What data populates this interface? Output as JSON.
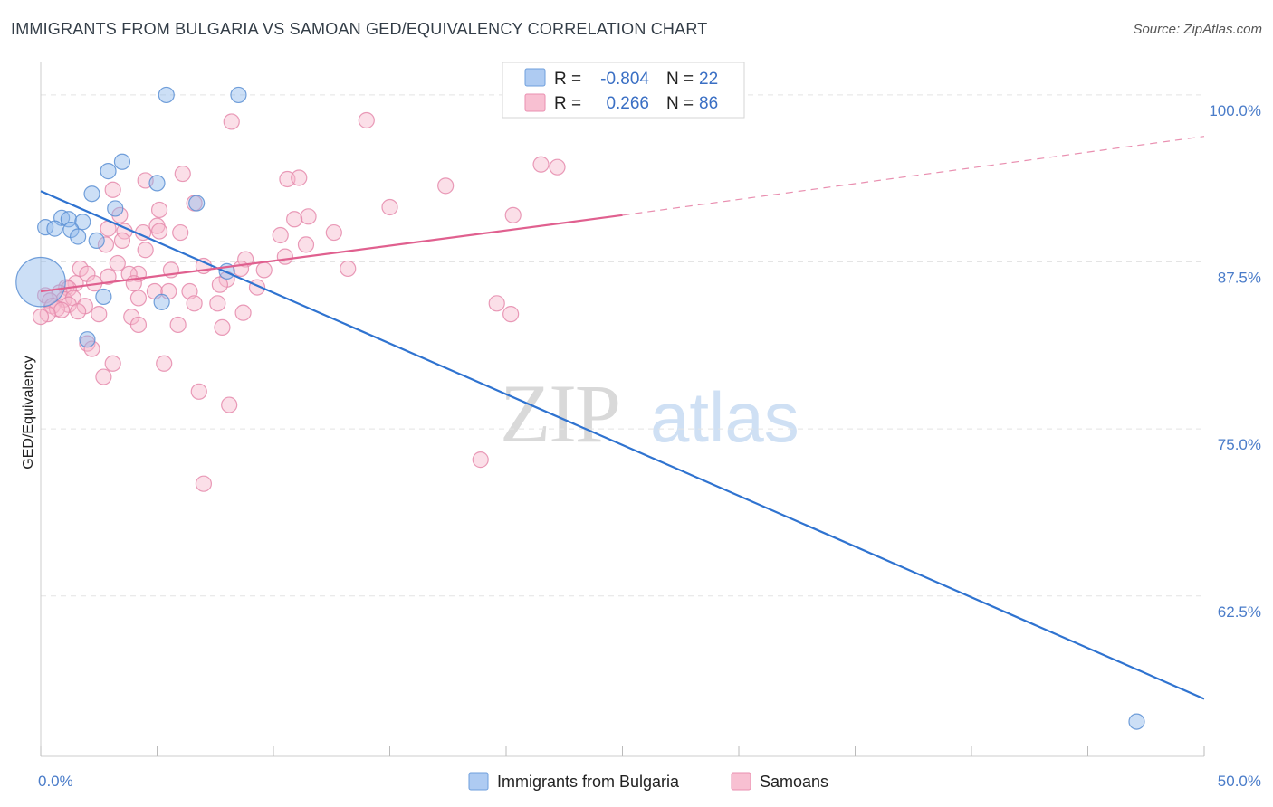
{
  "title": "IMMIGRANTS FROM BULGARIA VS SAMOAN GED/EQUIVALENCY CORRELATION CHART",
  "source": "Source: ZipAtlas.com",
  "watermark": {
    "zip": "ZIP",
    "atlas": "atlas"
  },
  "chart_data": {
    "type": "scatter",
    "xlabel": "",
    "ylabel": "GED/Equivalency",
    "xlim": [
      0,
      50
    ],
    "ylim": [
      50.5,
      102.5
    ],
    "x_tick_labels": {
      "min": "0.0%",
      "max": "50.0%"
    },
    "y_ticks": [
      {
        "value": 100.0,
        "label": "100.0%"
      },
      {
        "value": 87.5,
        "label": "87.5%"
      },
      {
        "value": 75.0,
        "label": "75.0%"
      },
      {
        "value": 62.5,
        "label": "62.5%"
      }
    ],
    "legend_top": [
      {
        "r_label": "R = ",
        "r_value": "-0.804",
        "n_label": "N = ",
        "n_value": "22",
        "swatch": "#aecbf2",
        "edge": "#6f9fdc"
      },
      {
        "r_label": "R = ",
        "r_value": "0.266",
        "n_label": "N = ",
        "n_value": "86",
        "swatch": "#f8c0d2",
        "edge": "#ea8fb0"
      }
    ],
    "series": [
      {
        "name": "Immigrants from Bulgaria",
        "color": "#8fb8ec",
        "edge": "#5b8fd4",
        "line_color": "#2f73d0",
        "trend": {
          "x0": 0,
          "y0": 92.8,
          "x1": 50,
          "y1": 54.8
        },
        "points": [
          [
            5.4,
            100.0
          ],
          [
            8.5,
            100.0
          ],
          [
            3.5,
            95.0
          ],
          [
            2.9,
            94.3
          ],
          [
            5.0,
            93.4
          ],
          [
            2.2,
            92.6
          ],
          [
            6.7,
            91.9
          ],
          [
            3.2,
            91.5
          ],
          [
            0.9,
            90.8
          ],
          [
            1.2,
            90.7
          ],
          [
            1.8,
            90.5
          ],
          [
            0.2,
            90.1
          ],
          [
            0.6,
            90.0
          ],
          [
            1.3,
            89.9
          ],
          [
            1.6,
            89.4
          ],
          [
            2.4,
            89.1
          ],
          [
            8.0,
            86.8
          ],
          [
            0.0,
            86.0
          ],
          [
            2.7,
            84.9
          ],
          [
            5.2,
            84.5
          ],
          [
            2.0,
            81.7
          ],
          [
            47.1,
            53.1
          ]
        ],
        "sizes": [
          1,
          1,
          1,
          1,
          1,
          1,
          1,
          1,
          1,
          1,
          1,
          1,
          1,
          1,
          1,
          1,
          1,
          3.2,
          1,
          1,
          1,
          1
        ]
      },
      {
        "name": "Samoans",
        "color": "#f7b8cc",
        "edge": "#e58aab",
        "line_color": "#e0608f",
        "trend": {
          "x0": 0,
          "y0": 85.3,
          "x1": 25,
          "y1": 91.0
        },
        "trend_ext": {
          "x0": 25,
          "y0": 91.0,
          "x1": 50,
          "y1": 96.9
        },
        "points": [
          [
            8.2,
            98.0
          ],
          [
            14.0,
            98.1
          ],
          [
            21.5,
            94.8
          ],
          [
            22.2,
            94.6
          ],
          [
            6.1,
            94.1
          ],
          [
            10.6,
            93.7
          ],
          [
            11.1,
            93.8
          ],
          [
            4.5,
            93.6
          ],
          [
            17.4,
            93.2
          ],
          [
            3.1,
            92.9
          ],
          [
            6.6,
            91.9
          ],
          [
            5.1,
            91.4
          ],
          [
            15.0,
            91.6
          ],
          [
            20.3,
            91.0
          ],
          [
            3.4,
            91.0
          ],
          [
            11.5,
            90.9
          ],
          [
            10.9,
            90.7
          ],
          [
            5.0,
            90.2
          ],
          [
            2.9,
            90.0
          ],
          [
            3.6,
            89.8
          ],
          [
            6.0,
            89.7
          ],
          [
            4.4,
            89.7
          ],
          [
            5.1,
            89.8
          ],
          [
            12.6,
            89.7
          ],
          [
            10.3,
            89.5
          ],
          [
            11.4,
            88.8
          ],
          [
            3.5,
            89.1
          ],
          [
            2.8,
            88.8
          ],
          [
            4.5,
            88.4
          ],
          [
            10.5,
            87.9
          ],
          [
            8.8,
            87.7
          ],
          [
            3.3,
            87.4
          ],
          [
            7.0,
            87.2
          ],
          [
            8.6,
            87.0
          ],
          [
            1.7,
            87.0
          ],
          [
            13.2,
            87.0
          ],
          [
            5.6,
            86.9
          ],
          [
            9.6,
            86.9
          ],
          [
            4.2,
            86.6
          ],
          [
            2.0,
            86.6
          ],
          [
            2.9,
            86.4
          ],
          [
            3.8,
            86.6
          ],
          [
            8.0,
            86.2
          ],
          [
            4.0,
            85.9
          ],
          [
            2.3,
            85.9
          ],
          [
            1.5,
            85.9
          ],
          [
            7.7,
            85.8
          ],
          [
            1.1,
            85.6
          ],
          [
            1.2,
            85.5
          ],
          [
            9.3,
            85.6
          ],
          [
            4.9,
            85.3
          ],
          [
            6.4,
            85.3
          ],
          [
            0.8,
            85.2
          ],
          [
            0.2,
            85.0
          ],
          [
            1.0,
            84.7
          ],
          [
            4.2,
            84.8
          ],
          [
            1.4,
            84.8
          ],
          [
            0.4,
            84.6
          ],
          [
            6.6,
            84.4
          ],
          [
            7.6,
            84.4
          ],
          [
            19.6,
            84.4
          ],
          [
            0.5,
            84.2
          ],
          [
            1.2,
            84.3
          ],
          [
            1.9,
            84.2
          ],
          [
            0.7,
            84.0
          ],
          [
            0.9,
            83.9
          ],
          [
            1.6,
            83.8
          ],
          [
            0.3,
            83.6
          ],
          [
            2.5,
            83.6
          ],
          [
            20.2,
            83.6
          ],
          [
            8.7,
            83.7
          ],
          [
            0.0,
            83.4
          ],
          [
            3.9,
            83.4
          ],
          [
            4.2,
            82.8
          ],
          [
            5.9,
            82.8
          ],
          [
            7.8,
            82.6
          ],
          [
            2.0,
            81.4
          ],
          [
            2.2,
            81.0
          ],
          [
            3.1,
            79.9
          ],
          [
            5.3,
            79.9
          ],
          [
            2.7,
            78.9
          ],
          [
            6.8,
            77.8
          ],
          [
            8.1,
            76.8
          ],
          [
            18.9,
            72.7
          ],
          [
            7.0,
            70.9
          ],
          [
            5.5,
            85.3
          ]
        ]
      }
    ],
    "legend_bottom": [
      "Immigrants from Bulgaria",
      "Samoans"
    ]
  }
}
